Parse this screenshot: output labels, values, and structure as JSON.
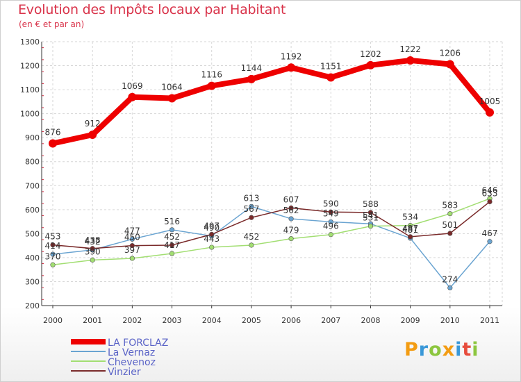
{
  "title": "Evolution des Impôts locaux par Habitant",
  "subtitle": "(en € et par an)",
  "logo_text": "Proxiti",
  "chart_data": {
    "type": "line",
    "title": "Evolution des Impôts locaux par Habitant",
    "subtitle": "(en € et par an)",
    "xlabel": "",
    "ylabel": "",
    "categories": [
      "2000",
      "2001",
      "2002",
      "2003",
      "2004",
      "2005",
      "2006",
      "2007",
      "2008",
      "2009",
      "2010",
      "2011"
    ],
    "ylim": [
      200,
      1300
    ],
    "yticks": [
      200,
      300,
      400,
      500,
      600,
      700,
      800,
      900,
      1000,
      1100,
      1200,
      1300
    ],
    "grid": true,
    "legend": "bottom-left",
    "series": [
      {
        "name": "LA FORCLAZ",
        "color": "#ee0000",
        "values": [
          876,
          912,
          1069,
          1064,
          1116,
          1144,
          1192,
          1151,
          1202,
          1222,
          1206,
          1005
        ]
      },
      {
        "name": "La Vernaz",
        "color": "#6aa4d1",
        "values": [
          414,
          432,
          477,
          516,
          490,
          613,
          562,
          549,
          541,
          481,
          274,
          467
        ]
      },
      {
        "name": "Chevenoz",
        "color": "#a2de72",
        "values": [
          370,
          390,
          397,
          417,
          443,
          452,
          479,
          496,
          531,
          534,
          583,
          646
        ]
      },
      {
        "name": "Vinzier",
        "color": "#7a2a2a",
        "values": [
          453,
          438,
          450,
          452,
          497,
          567,
          607,
          590,
          588,
          487,
          501,
          633
        ]
      }
    ]
  }
}
